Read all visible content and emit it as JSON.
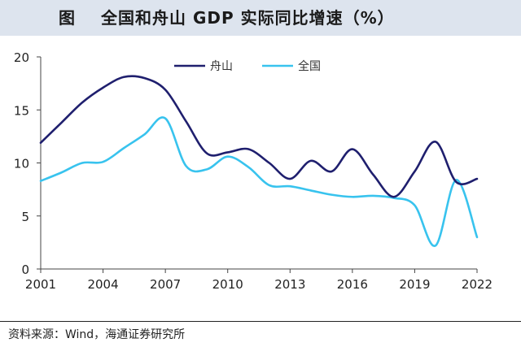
{
  "header": {
    "figure_label": "图",
    "title": "全国和舟山 GDP 实际同比增速（%）"
  },
  "source": "资料来源：Wind，海通证券研究所",
  "chart_data": {
    "type": "line",
    "xlim": [
      2001,
      2022
    ],
    "ylim": [
      0,
      20
    ],
    "x_ticks": [
      2001,
      2004,
      2007,
      2010,
      2013,
      2016,
      2019,
      2022
    ],
    "y_ticks": [
      0,
      5,
      10,
      15,
      20
    ],
    "grid": false,
    "legend_position": "top-center",
    "series": [
      {
        "name": "舟山",
        "color": "#1f1f6e",
        "x": [
          2001,
          2002,
          2003,
          2004,
          2005,
          2006,
          2007,
          2008,
          2009,
          2010,
          2011,
          2012,
          2013,
          2014,
          2015,
          2016,
          2017,
          2018,
          2019,
          2020,
          2021,
          2022
        ],
        "values": [
          11.9,
          13.8,
          15.7,
          17.1,
          18.1,
          18.0,
          16.9,
          13.9,
          10.9,
          11.0,
          11.3,
          10.0,
          8.5,
          10.2,
          9.2,
          11.3,
          8.9,
          6.8,
          9.2,
          12.0,
          8.2,
          8.5
        ]
      },
      {
        "name": "全国",
        "color": "#38c3ee",
        "x": [
          2001,
          2002,
          2003,
          2004,
          2005,
          2006,
          2007,
          2008,
          2009,
          2010,
          2011,
          2012,
          2013,
          2014,
          2015,
          2016,
          2017,
          2018,
          2019,
          2020,
          2021,
          2022
        ],
        "values": [
          8.3,
          9.1,
          10.0,
          10.1,
          11.4,
          12.7,
          14.2,
          9.7,
          9.4,
          10.6,
          9.6,
          7.9,
          7.8,
          7.4,
          7.0,
          6.8,
          6.9,
          6.7,
          6.0,
          2.2,
          8.4,
          3.0
        ]
      }
    ]
  }
}
